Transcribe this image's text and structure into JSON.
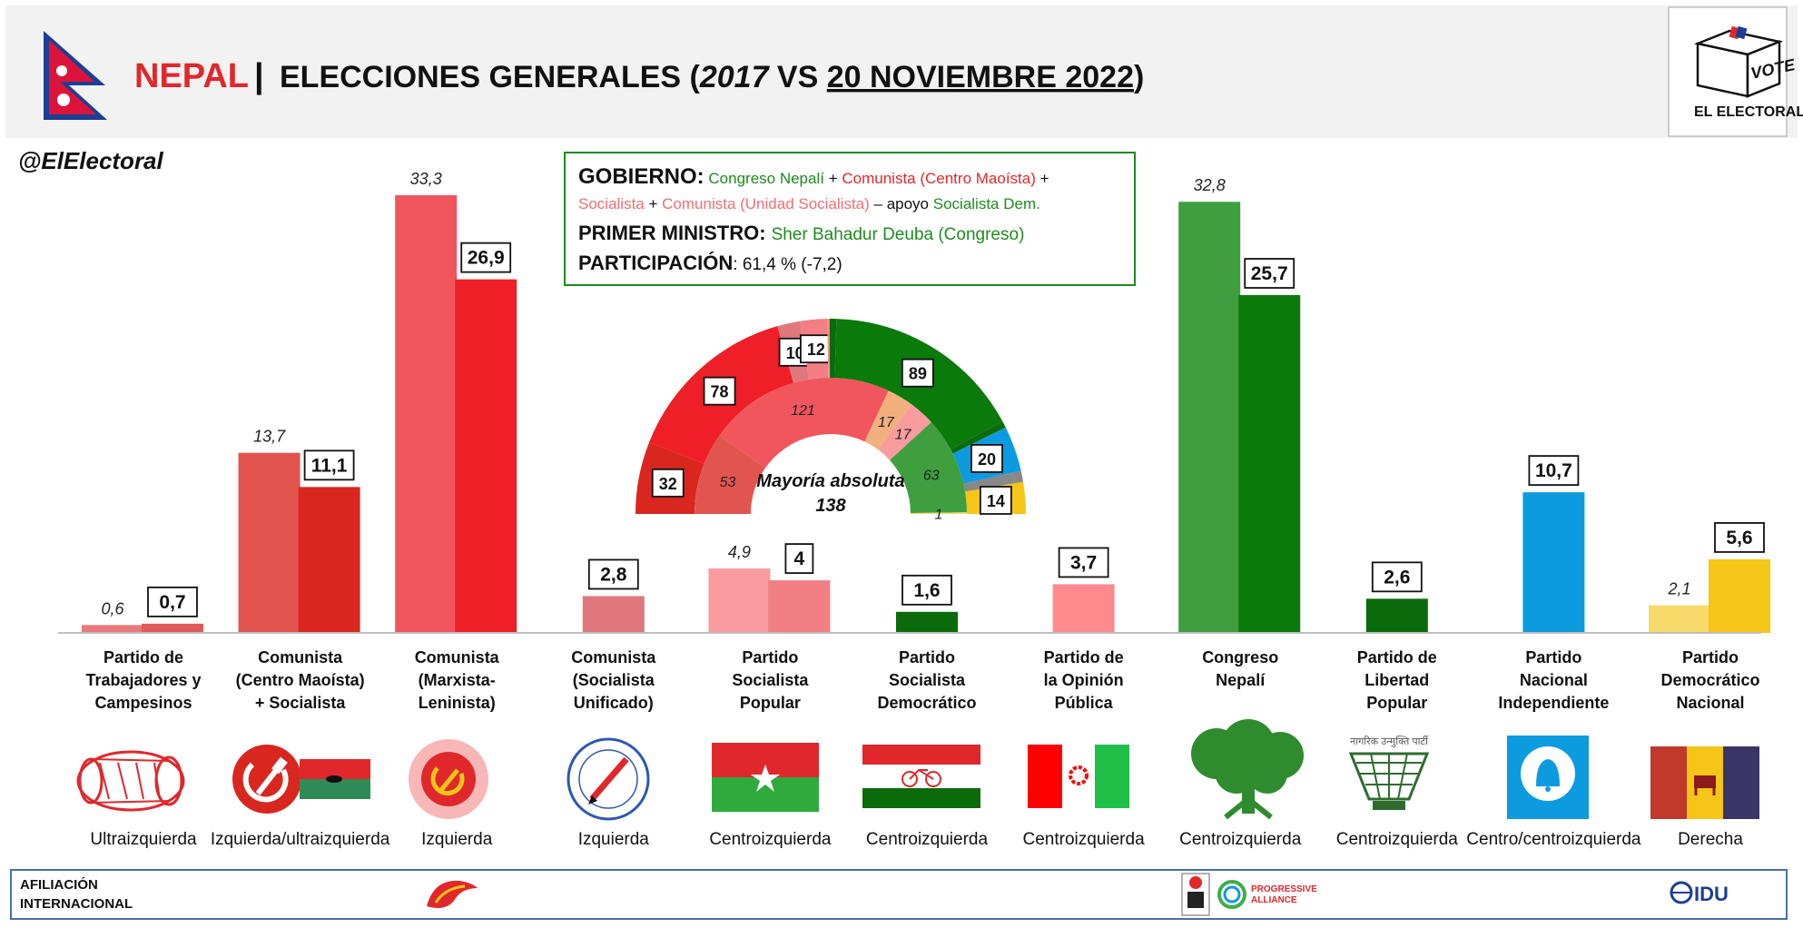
{
  "header": {
    "country": "NEPAL",
    "separator": "|",
    "title_pre": "ELECCIONES GENERALES (",
    "year_prev": "2017",
    "vs": " VS ",
    "date_current": "20 NOVIEMBRE 2022",
    "title_post": ")",
    "logo_vote": "VOTE",
    "logo_name": "EL ELECTORAL"
  },
  "handle": "@ElElectoral",
  "info_box": {
    "gov_label": "GOBIERNO:",
    "gov_parties": [
      {
        "text": " Congreso Nepalí",
        "color": "#1e8b1e"
      },
      {
        "text": " + ",
        "color": "#000000"
      },
      {
        "text": "Comunista (Centro Maoísta)",
        "color": "#e0282c"
      },
      {
        "text": " +",
        "color": "#000000"
      }
    ],
    "gov_parties_line2": [
      {
        "text": "Socialista",
        "color": "#ef6f73"
      },
      {
        "text": " + ",
        "color": "#000000"
      },
      {
        "text": "Comunista (Unidad Socialista)",
        "color": "#ef6f73"
      },
      {
        "text": " – apoyo ",
        "color": "#000000"
      },
      {
        "text": "Socialista Dem.",
        "color": "#1e8b1e"
      }
    ],
    "pm_label": "PRIMER MINISTRO:",
    "pm_value": "Sher Bahadur Deuba (Congreso)",
    "turnout_label": "PARTICIPACIÓN",
    "turnout_value": ": 61,4 % (-7,2)"
  },
  "chart_data": {
    "type": "bar",
    "title": "NEPAL | ELECCIONES GENERALES (2017 VS 20 NOVIEMBRE 2022)",
    "series_labels": [
      "2017",
      "2022"
    ],
    "ylim": [
      0,
      35
    ],
    "parties": [
      {
        "label": "Partido de Trabajadores y Campesinos",
        "v2017": 0.6,
        "v2022": 0.7,
        "c2017": "#e8797a",
        "c2022": "#e05a5c",
        "ideology": "Ultraizquierda",
        "logo": "drum-icon"
      },
      {
        "label": "Comunista (Centro Maoísta) + Socialista",
        "v2017": 13.7,
        "v2022": 11.1,
        "c2017": "#e2554f",
        "c2022": "#d9261f",
        "ideology": "Izquierda/ultraizquierda",
        "logo": "hammer-sickle-icon"
      },
      {
        "label": "Comunista (Marxista-Leninista)",
        "v2017": 33.3,
        "v2022": 26.9,
        "c2017": "#f0565c",
        "c2022": "#ee1f27",
        "ideology": "Izquierda",
        "logo": "sun-hammer-sickle-icon"
      },
      {
        "label": "Comunista (Socialista Unificado)",
        "v2017": null,
        "v2022": 2.8,
        "c2017": "#e0777c",
        "c2022": "#e0777c",
        "ideology": "Izquierda",
        "logo": "pen-seal-icon"
      },
      {
        "label": "Partido Socialista Popular",
        "v2017": 4.9,
        "v2022": 4,
        "c2017": "#f89ca0",
        "c2022": "#f27f84",
        "ideology": "Centroizquierda",
        "logo": "star-flag-icon"
      },
      {
        "label": "Partido Socialista Democrático",
        "v2017": null,
        "v2022": 1.6,
        "c2017": "#0a6b0a",
        "c2022": "#0a6b0a",
        "ideology": "Centroizquierda",
        "logo": "bicycle-flag-icon"
      },
      {
        "label": "Partido de la Opinión Pública",
        "v2017": null,
        "v2022": 3.7,
        "c2017": "#ff8a8e",
        "c2022": "#ff8a8e",
        "ideology": "Centroizquierda",
        "logo": "gear-flag-icon"
      },
      {
        "label": "Congreso Nepalí",
        "v2017": 32.8,
        "v2022": 25.7,
        "c2017": "#3f9f3f",
        "c2022": "#0a7a0a",
        "ideology": "Centroizquierda",
        "logo": "tree-icon"
      },
      {
        "label": "Partido de Libertad Popular",
        "v2017": null,
        "v2022": 2.6,
        "c2017": "#0a6b0a",
        "c2022": "#0a6b0a",
        "ideology": "Centroizquierda",
        "logo": "basket-icon"
      },
      {
        "label": "Partido Nacional Independiente",
        "v2017": null,
        "v2022": 10.7,
        "c2017": "#0d9be0",
        "c2022": "#0d9be0",
        "ideology": "Centro/centroizquierda",
        "logo": "bell-icon"
      },
      {
        "label": "Partido Democrático Nacional",
        "v2017": 2.1,
        "v2022": 5.6,
        "c2017": "#f8da6a",
        "c2022": "#f5c518",
        "ideology": "Derecha",
        "logo": "plough-flag-icon"
      }
    ],
    "value_labels_2017": [
      "0,6",
      "13,7",
      "33,3",
      "",
      "4,9",
      "",
      "",
      "32,8",
      "",
      "",
      "2,1"
    ],
    "value_labels_2022": [
      "0,7",
      "11,1",
      "26,9",
      "2,8",
      "4",
      "1,6",
      "3,7",
      "25,7",
      "2,6",
      "10,7",
      "5,6"
    ],
    "category_lines": [
      [
        "Partido de",
        "Trabajadores y",
        "Campesinos"
      ],
      [
        "Comunista",
        "(Centro Maoísta)",
        "+ Socialista"
      ],
      [
        "Comunista",
        "(Marxista-",
        "Leninista)"
      ],
      [
        "Comunista",
        "(Socialista",
        "Unificado)"
      ],
      [
        "Partido",
        "Socialista",
        "Popular"
      ],
      [
        "Partido",
        "Socialista",
        "Democrático"
      ],
      [
        "Partido de",
        "la Opinión",
        "Pública"
      ],
      [
        "Congreso",
        "Nepalí"
      ],
      [
        "Partido de",
        "Libertad",
        "Popular"
      ],
      [
        "Partido",
        "Nacional",
        "Independiente"
      ],
      [
        "Partido",
        "Democrático",
        "Nacional"
      ]
    ]
  },
  "parliament": {
    "majority_label": "Mayoría absoluta",
    "majority_value": "138",
    "outer_ring": [
      {
        "seats": 32,
        "label": "32",
        "color": "#d9261f"
      },
      {
        "seats": 78,
        "label": "78",
        "color": "#ee1f27"
      },
      {
        "seats": 10,
        "label": "10",
        "color": "#e0777c"
      },
      {
        "seats": 12,
        "label": "12",
        "color": "#f27f84"
      },
      {
        "seats": 1,
        "label": "",
        "color": "#ff8a8e"
      },
      {
        "seats": 3,
        "label": "",
        "color": "#0a6b0a"
      },
      {
        "seats": 89,
        "label": "89",
        "color": "#0a7a0a"
      },
      {
        "seats": 3,
        "label": "",
        "color": "#0a6b0a"
      },
      {
        "seats": 20,
        "label": "20",
        "color": "#0d9be0"
      },
      {
        "seats": 5,
        "label": "",
        "color": "#888888"
      },
      {
        "seats": 14,
        "label": "14",
        "color": "#f5c518"
      }
    ],
    "inner_ring": [
      {
        "seats": 53,
        "label": "53",
        "color": "#e2554f"
      },
      {
        "seats": 121,
        "label": "121",
        "color": "#f0565c"
      },
      {
        "seats": 17,
        "label": "17",
        "color": "#f3b07f"
      },
      {
        "seats": 17,
        "label": "17",
        "color": "#f89ca0"
      },
      {
        "seats": 63,
        "label": "63",
        "color": "#3f9f3f"
      },
      {
        "seats": 1,
        "label": "1",
        "color": "#f8da6a"
      }
    ]
  },
  "footer": {
    "label_line1": "AFILIACIÓN",
    "label_line2": "INTERNACIONAL",
    "pa_line1": "PROGRESSIVE",
    "pa_line2": "ALLIANCE",
    "idu": "IDU"
  },
  "colors": {
    "header_bg": "#f2f2f2",
    "nepal_red": "#e0282c",
    "nepal_blue": "#1c3f94",
    "box_border": "#1e8b1e",
    "axis": "#bfbfbf",
    "footer_border": "#4a6fa5"
  }
}
